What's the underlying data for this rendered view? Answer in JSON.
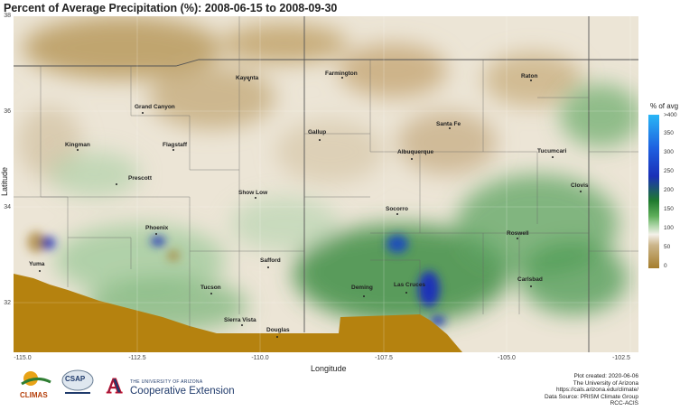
{
  "title": "Percent of Average Precipitation (%): 2008-06-15 to 2008-09-30",
  "axes": {
    "xlabel": "Longitude",
    "ylabel": "Latitude",
    "xticks": [
      "-115.0",
      "-112.5",
      "-110.0",
      "-107.5",
      "-105.0",
      "-102.5"
    ],
    "yticks": [
      "38",
      "36",
      "34",
      "32"
    ]
  },
  "legend": {
    "title": "% of avg",
    "ticks": [
      ">400",
      "350",
      "300",
      "250",
      "200",
      "150",
      "100",
      "50",
      "0"
    ],
    "colors": {
      "high": "#29b6f6",
      "blue": "#1a30b8",
      "green": "#1f7a2e",
      "normal": "#f4f1ea",
      "dry": "#a57d2c"
    }
  },
  "cities": [
    {
      "name": "Kayenta"
    },
    {
      "name": "Farmington"
    },
    {
      "name": "Raton"
    },
    {
      "name": "Grand Canyon"
    },
    {
      "name": "Santa Fe"
    },
    {
      "name": "Gallup"
    },
    {
      "name": "Kingman"
    },
    {
      "name": "Flagstaff"
    },
    {
      "name": "Albuquerque"
    },
    {
      "name": "Tucumcari"
    },
    {
      "name": "Prescott"
    },
    {
      "name": "Clovis"
    },
    {
      "name": "Show Low"
    },
    {
      "name": "Socorro"
    },
    {
      "name": "Phoenix"
    },
    {
      "name": "Roswell"
    },
    {
      "name": "Yuma"
    },
    {
      "name": "Safford"
    },
    {
      "name": "Tucson"
    },
    {
      "name": "Deming"
    },
    {
      "name": "Las Cruces"
    },
    {
      "name": "Carlsbad"
    },
    {
      "name": "Sierra Vista"
    },
    {
      "name": "Douglas"
    }
  ],
  "footer": {
    "lines": [
      "Plot created: 2020-06-06",
      "The University of Arizona",
      "https://cals.arizona.edu/climate/",
      "Data Source: PRISM Climate Group",
      "RCC-ACIS"
    ]
  },
  "logos": {
    "climas": "CLIMAS",
    "csap": "CSAP",
    "ua": "A",
    "coop_small": "THE UNIVERSITY OF ARIZONA",
    "coop_big": "Cooperative Extension"
  }
}
